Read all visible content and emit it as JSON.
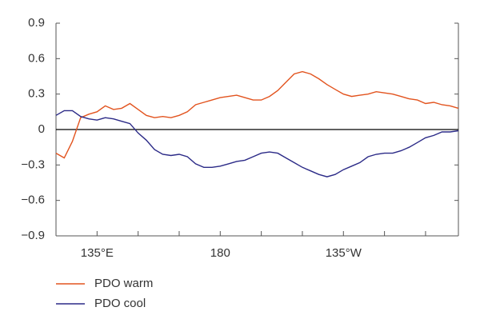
{
  "chart_data": {
    "type": "line",
    "x": [
      120,
      123,
      126,
      129,
      132,
      135,
      138,
      141,
      144,
      147,
      150,
      153,
      156,
      159,
      162,
      165,
      168,
      171,
      174,
      177,
      180,
      183,
      186,
      189,
      192,
      195,
      198,
      201,
      204,
      207,
      210,
      213,
      216,
      219,
      222,
      225,
      228,
      231,
      234,
      237,
      240,
      243,
      246,
      249,
      252,
      255,
      258,
      261,
      264,
      267
    ],
    "series": [
      {
        "name": "PDO warm",
        "color": "#e2531e",
        "values": [
          -0.2,
          -0.24,
          -0.1,
          0.1,
          0.13,
          0.15,
          0.2,
          0.17,
          0.18,
          0.22,
          0.17,
          0.12,
          0.1,
          0.11,
          0.1,
          0.12,
          0.15,
          0.21,
          0.23,
          0.25,
          0.27,
          0.28,
          0.29,
          0.27,
          0.25,
          0.25,
          0.28,
          0.33,
          0.4,
          0.47,
          0.49,
          0.47,
          0.43,
          0.38,
          0.34,
          0.3,
          0.28,
          0.29,
          0.3,
          0.32,
          0.31,
          0.3,
          0.28,
          0.26,
          0.25,
          0.22,
          0.23,
          0.21,
          0.2,
          0.18
        ]
      },
      {
        "name": "PDO cool",
        "color": "#2b2a87",
        "values": [
          0.12,
          0.16,
          0.16,
          0.11,
          0.09,
          0.08,
          0.1,
          0.09,
          0.07,
          0.05,
          -0.03,
          -0.09,
          -0.17,
          -0.21,
          -0.22,
          -0.21,
          -0.23,
          -0.29,
          -0.32,
          -0.32,
          -0.31,
          -0.29,
          -0.27,
          -0.26,
          -0.23,
          -0.2,
          -0.19,
          -0.2,
          -0.24,
          -0.28,
          -0.32,
          -0.35,
          -0.38,
          -0.4,
          -0.38,
          -0.34,
          -0.31,
          -0.28,
          -0.23,
          -0.21,
          -0.2,
          -0.2,
          -0.18,
          -0.15,
          -0.11,
          -0.07,
          -0.05,
          -0.02,
          -0.02,
          -0.01
        ]
      }
    ],
    "xlim": [
      120,
      267
    ],
    "xticks": [
      {
        "value": 135,
        "label": "135°E"
      },
      180,
      {
        "value": 225,
        "label": "135°W"
      }
    ],
    "x_minor_ticks": [
      120,
      150,
      165,
      195,
      210,
      240,
      255
    ],
    "ylim": [
      -0.9,
      0.9
    ],
    "yticks": [
      {
        "value": -0.9,
        "label": "−0.9"
      },
      {
        "value": -0.6,
        "label": "−0.6"
      },
      {
        "value": -0.3,
        "label": "−0.3"
      },
      0,
      0.3,
      0.6,
      0.9
    ],
    "zero_line": true
  }
}
